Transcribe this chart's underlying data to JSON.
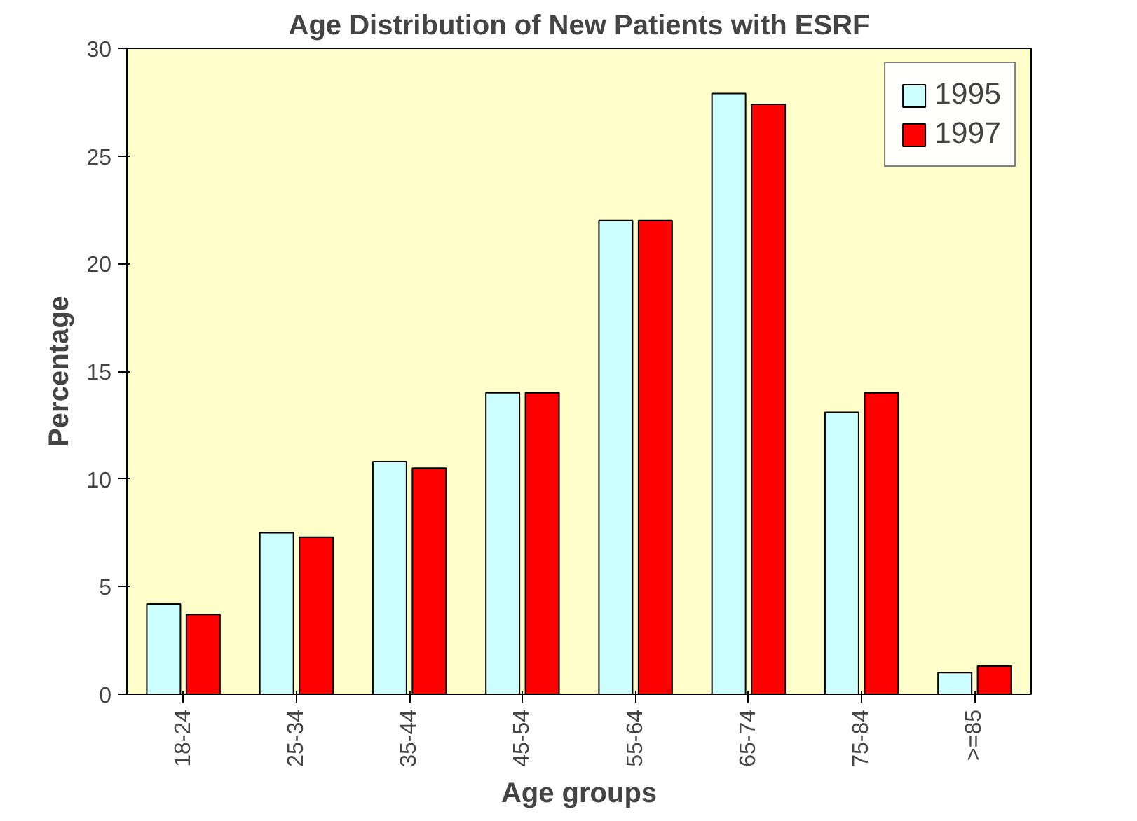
{
  "chart_data": {
    "type": "bar",
    "title": "Age Distribution of New Patients with ESRF",
    "xlabel": "Age groups",
    "ylabel": "Percentage",
    "categories": [
      "18-24",
      "25-34",
      "35-44",
      "45-54",
      "55-64",
      "65-74",
      "75-84",
      ">=85"
    ],
    "series": [
      {
        "name": "1995",
        "color": "#ccffff",
        "values": [
          4.2,
          7.5,
          10.8,
          14.0,
          22.0,
          27.9,
          13.1,
          1.0
        ]
      },
      {
        "name": "1997",
        "color": "#ff0000",
        "values": [
          3.7,
          7.3,
          10.5,
          14.0,
          22.0,
          27.4,
          14.0,
          1.3
        ]
      }
    ],
    "ylim": [
      0,
      30
    ],
    "yticks": [
      0,
      5,
      10,
      15,
      20,
      25,
      30
    ],
    "grid": false,
    "legend": "top right"
  }
}
